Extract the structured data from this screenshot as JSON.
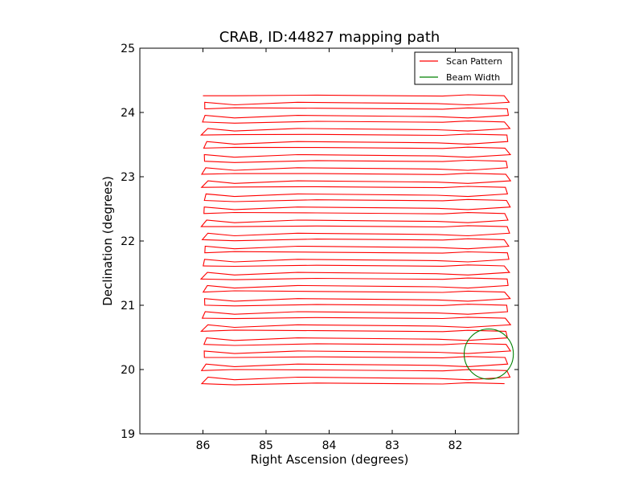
{
  "chart_data": {
    "type": "line",
    "title": "CRAB, ID:44827 mapping path",
    "xlabel": "Right Ascension (degrees)",
    "ylabel": "Declination (degrees)",
    "xlim": [
      87.0,
      81.0
    ],
    "ylim": [
      19,
      25
    ],
    "xticks": [
      86,
      85,
      84,
      83,
      82
    ],
    "yticks": [
      19,
      20,
      21,
      22,
      23,
      24,
      25
    ],
    "xtick_labels": [
      "86",
      "85",
      "84",
      "83",
      "82"
    ],
    "ytick_labels": [
      "19",
      "20",
      "21",
      "22",
      "23",
      "24",
      "25"
    ],
    "grid": false,
    "legend_position": "top-right",
    "series": [
      {
        "name": "Scan Pattern",
        "color": "#ff0000",
        "pattern": "raster",
        "ra_range": [
          81.0,
          86.0
        ],
        "dec_range": [
          19.78,
          24.26
        ],
        "row_count": 45
      },
      {
        "name": "Beam Width",
        "color": "#008000",
        "shape": "circle",
        "center": [
          81.47,
          20.24
        ],
        "radius_deg": 0.39
      }
    ]
  }
}
